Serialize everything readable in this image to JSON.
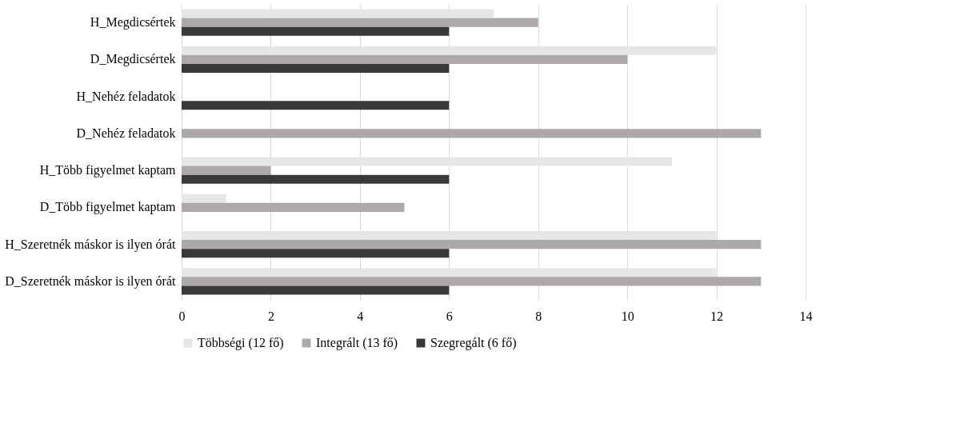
{
  "chart_data": {
    "type": "bar",
    "orientation": "horizontal",
    "categories": [
      "H_Megdicsértek",
      "D_Megdicsértek",
      "H_Nehéz feladatok",
      "D_Nehéz feladatok",
      "H_Több figyelmet kaptam",
      "D_Több figyelmet kaptam",
      "H_Szeretnék máskor is ilyen órát",
      "D_Szeretnék máskor is ilyen órát"
    ],
    "series": [
      {
        "name": "Többségi (12 fő)",
        "color": "#e6e6e6",
        "values": [
          7,
          12,
          null,
          null,
          11,
          1,
          12,
          12
        ]
      },
      {
        "name": "Integrált (13 fő)",
        "color": "#ada9a9",
        "values": [
          8,
          10,
          null,
          13,
          2,
          5,
          13,
          13
        ]
      },
      {
        "name": "Szegregált (6 fő)",
        "color": "#3a3838",
        "values": [
          6,
          6,
          6,
          null,
          6,
          null,
          6,
          6
        ]
      }
    ],
    "xlim": [
      0,
      14
    ],
    "xticks": [
      0,
      2,
      4,
      6,
      8,
      10,
      12,
      14
    ],
    "grid": "x",
    "legend": "bottom"
  }
}
